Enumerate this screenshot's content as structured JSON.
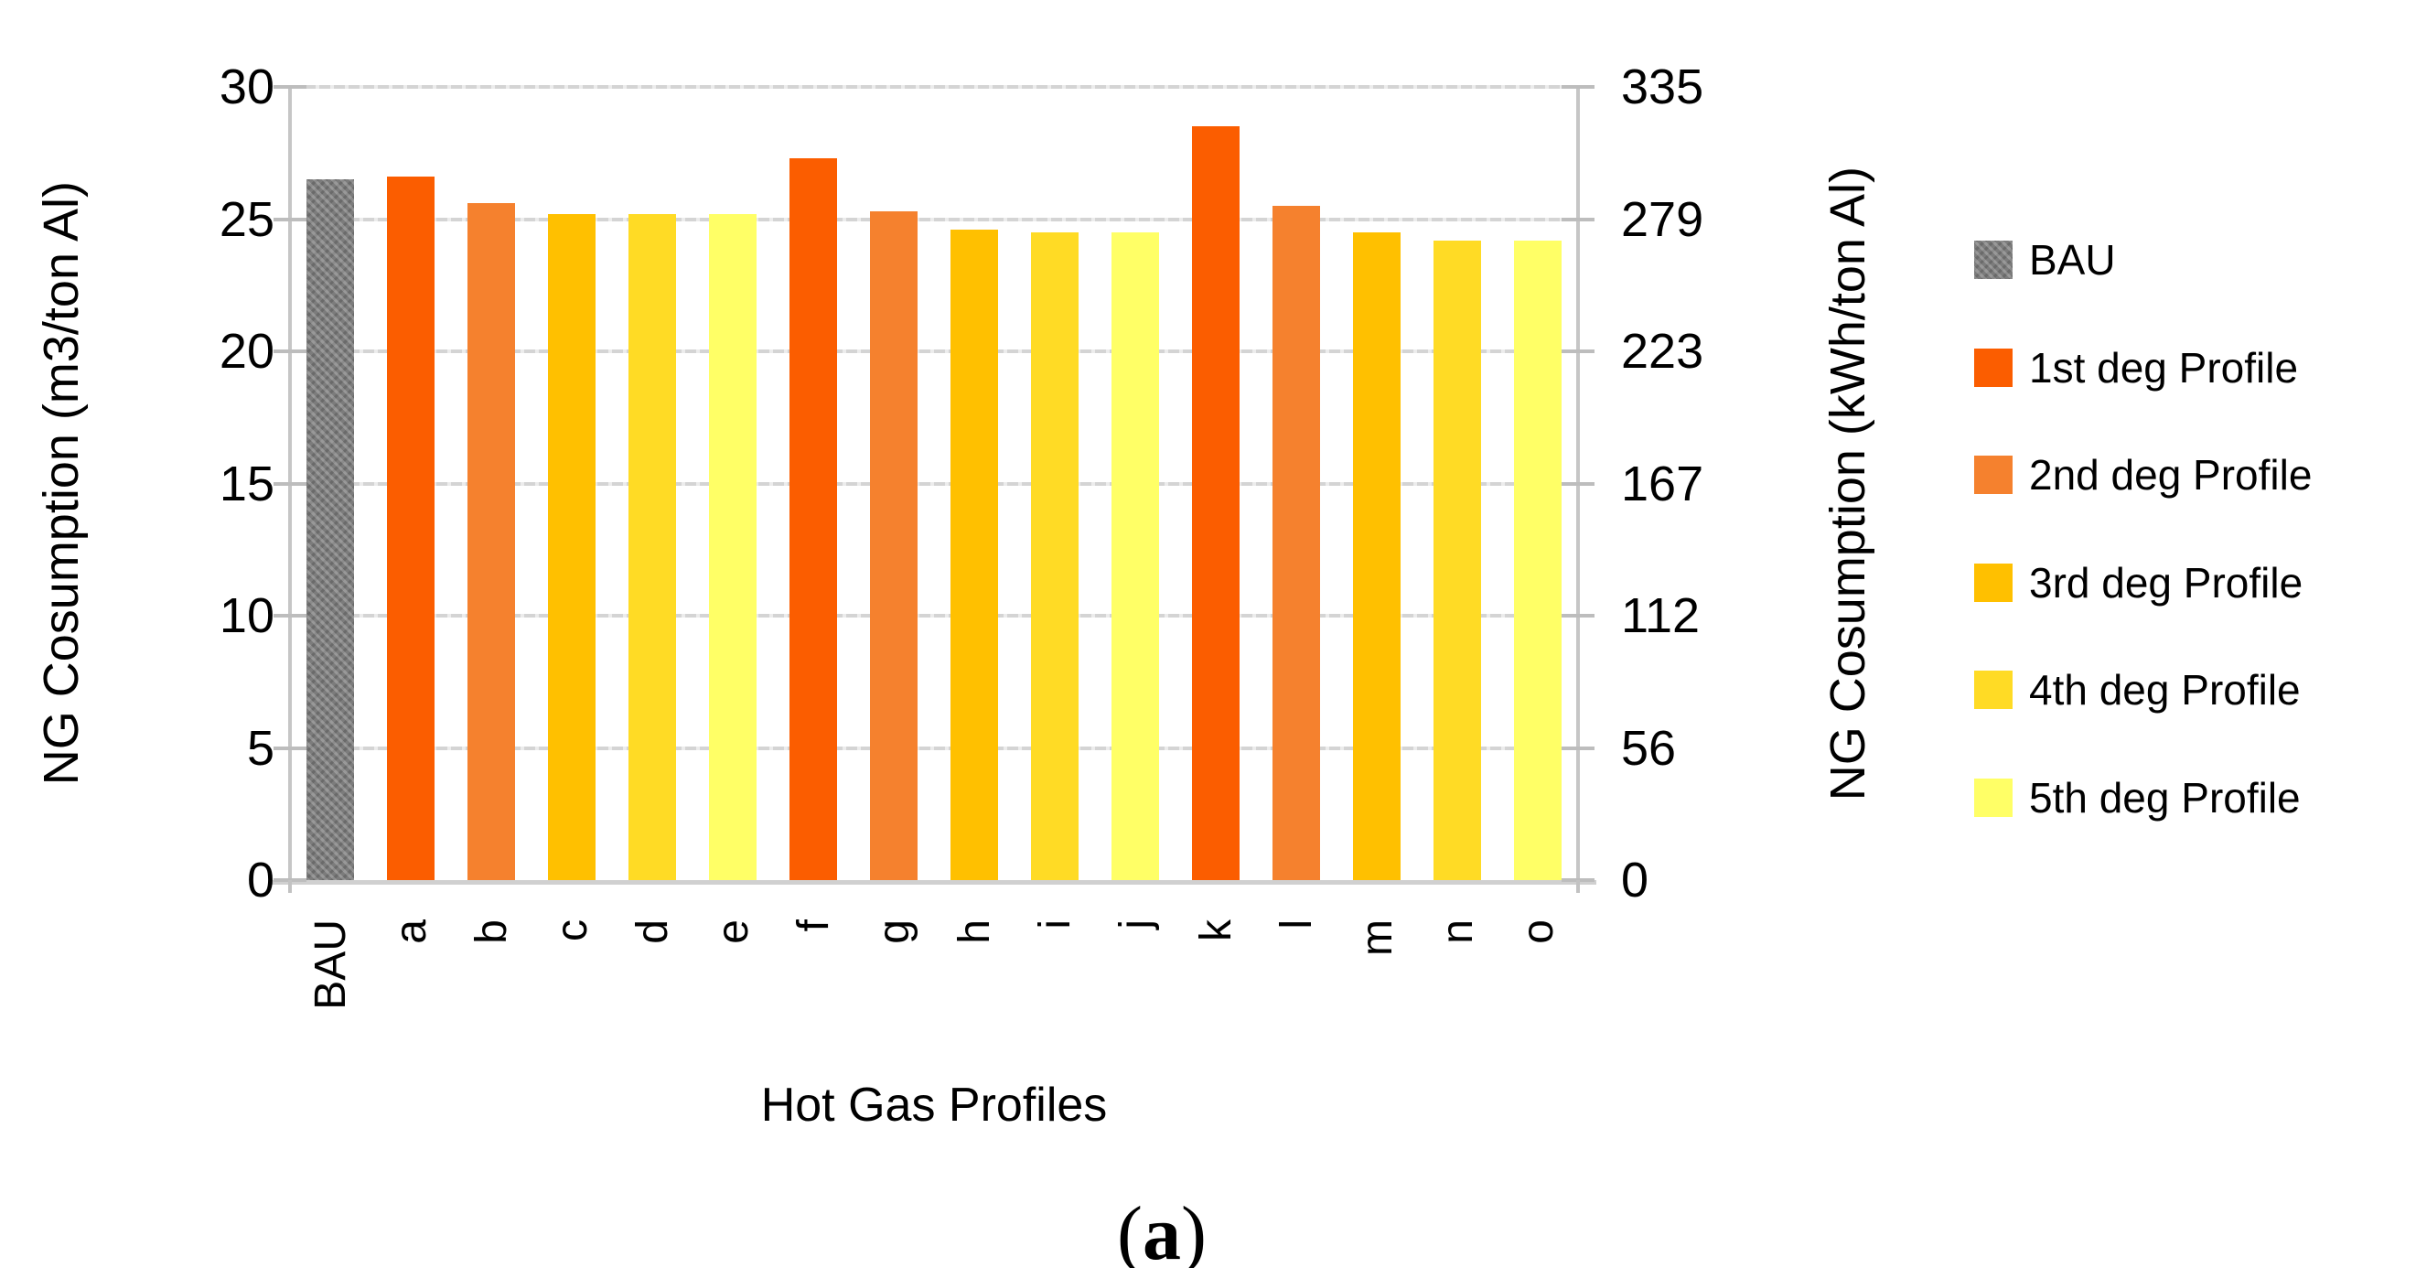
{
  "chart_data": {
    "type": "bar",
    "title": "",
    "categories": [
      "BAU",
      "a",
      "b",
      "c",
      "d",
      "e",
      "f",
      "g",
      "h",
      "i",
      "j",
      "k",
      "l",
      "m",
      "n",
      "o"
    ],
    "values": [
      26.5,
      26.6,
      25.6,
      25.2,
      25.2,
      25.2,
      27.3,
      25.3,
      24.6,
      24.5,
      24.5,
      28.5,
      25.5,
      24.5,
      24.2,
      24.2
    ],
    "bar_series": [
      "BAU",
      "1st deg Profile",
      "2nd deg Profile",
      "3rd deg Profile",
      "4th deg Profile",
      "5th deg Profile",
      "1st deg Profile",
      "2nd deg Profile",
      "3rd deg Profile",
      "4th deg Profile",
      "5th deg Profile",
      "1st deg Profile",
      "2nd deg Profile",
      "3rd deg Profile",
      "4th deg Profile",
      "5th deg Profile"
    ],
    "xlabel": "Hot Gas Profiles",
    "ylabel_left": "NG Cosumption (m3/ton Al)",
    "ylabel_right": "NG Cosumption (kWh/ton Al)",
    "left_ticks": [
      30,
      25,
      20,
      15,
      10,
      5,
      0
    ],
    "right_ticks": [
      335,
      279,
      223,
      167,
      112,
      56,
      0
    ],
    "ylim_left": [
      0,
      30
    ],
    "ylim_right": [
      0,
      335
    ],
    "grid": true,
    "legend_position": "right"
  },
  "legend": {
    "entries": [
      {
        "label": "BAU",
        "color": "#7C7C7C",
        "pattern": true
      },
      {
        "label": "1st deg Profile",
        "color": "#FB5D00",
        "pattern": false
      },
      {
        "label": "2nd deg Profile",
        "color": "#F5812E",
        "pattern": false
      },
      {
        "label": "3rd deg Profile",
        "color": "#FFC000",
        "pattern": false
      },
      {
        "label": "4th deg Profile",
        "color": "#FFDB25",
        "pattern": false
      },
      {
        "label": "5th deg Profile",
        "color": "#FFFF66",
        "pattern": false
      }
    ]
  },
  "caption": {
    "open": "(",
    "letter": "a",
    "close": ")"
  },
  "colors": {
    "gridline": "#D4D4D4",
    "spine": "#C6C6C6",
    "tick_text": "#000000"
  }
}
